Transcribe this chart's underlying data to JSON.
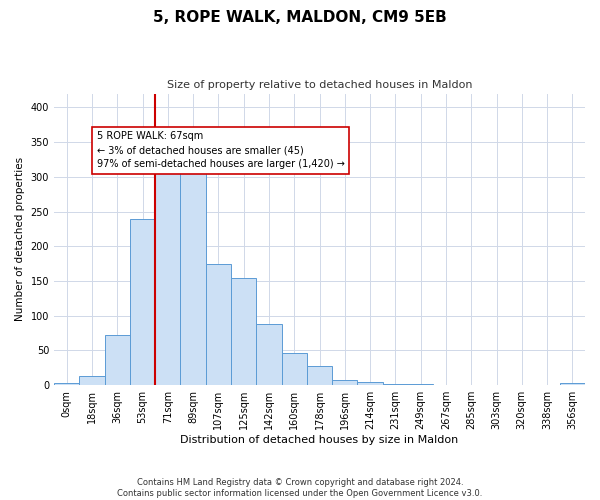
{
  "title": "5, ROPE WALK, MALDON, CM9 5EB",
  "subtitle": "Size of property relative to detached houses in Maldon",
  "xlabel": "Distribution of detached houses by size in Maldon",
  "ylabel": "Number of detached properties",
  "bar_labels": [
    "0sqm",
    "18sqm",
    "36sqm",
    "53sqm",
    "71sqm",
    "89sqm",
    "107sqm",
    "125sqm",
    "142sqm",
    "160sqm",
    "178sqm",
    "196sqm",
    "214sqm",
    "231sqm",
    "249sqm",
    "267sqm",
    "285sqm",
    "303sqm",
    "320sqm",
    "338sqm",
    "356sqm"
  ],
  "bar_heights": [
    3,
    13,
    72,
    240,
    335,
    307,
    174,
    154,
    88,
    46,
    27,
    7,
    5,
    2,
    2,
    1,
    0,
    0,
    0,
    0,
    3
  ],
  "bar_color": "#cce0f5",
  "bar_edge_color": "#5b9bd5",
  "bar_width": 1.0,
  "vline_x": 4.0,
  "vline_color": "#cc0000",
  "annotation_text": "5 ROPE WALK: 67sqm\n← 3% of detached houses are smaller (45)\n97% of semi-detached houses are larger (1,420) →",
  "annotation_box_color": "#ffffff",
  "annotation_box_edge": "#cc0000",
  "ylim": [
    0,
    420
  ],
  "yticks": [
    0,
    50,
    100,
    150,
    200,
    250,
    300,
    350,
    400
  ],
  "footer": "Contains HM Land Registry data © Crown copyright and database right 2024.\nContains public sector information licensed under the Open Government Licence v3.0.",
  "bg_color": "#ffffff",
  "grid_color": "#d0d8e8",
  "title_fontsize": 11,
  "subtitle_fontsize": 8,
  "xlabel_fontsize": 8,
  "ylabel_fontsize": 7.5,
  "tick_fontsize": 7,
  "annotation_fontsize": 7,
  "footer_fontsize": 6
}
